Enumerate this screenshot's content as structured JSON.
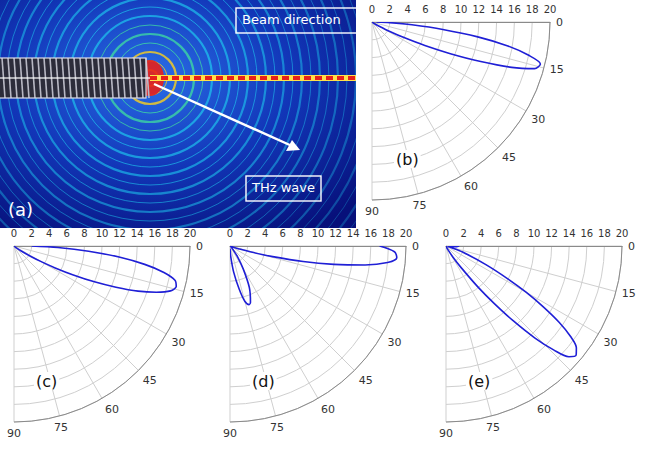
{
  "panel_a": {
    "title": "(a)",
    "annotations": [
      "Beam direction",
      "THz wave"
    ]
  },
  "chart_data": [
    {
      "type": "polar",
      "title": "(b)",
      "color": "#1f1fd6",
      "grid": true,
      "thetalim": [
        0,
        90
      ],
      "thetaticks": [
        0,
        15,
        30,
        45,
        60,
        75,
        90
      ],
      "rlim": [
        0,
        20
      ],
      "rticks": [
        0,
        2,
        4,
        6,
        8,
        10,
        12,
        14,
        16,
        18,
        20
      ],
      "theta": [
        0,
        2,
        4,
        6,
        8,
        10,
        12,
        14,
        16,
        18,
        20,
        22,
        24,
        26,
        28,
        30,
        34,
        40,
        90
      ],
      "r": [
        0.5,
        2,
        4.5,
        8,
        12,
        15.5,
        18,
        19.5,
        19,
        16.5,
        13,
        9.5,
        6.5,
        4,
        2.2,
        1,
        0.3,
        0,
        0
      ]
    },
    {
      "type": "polar",
      "title": "(c)",
      "color": "#1f1fd6",
      "grid": true,
      "thetalim": [
        0,
        90
      ],
      "thetaticks": [
        0,
        15,
        30,
        45,
        60,
        75,
        90
      ],
      "rlim": [
        0,
        20
      ],
      "rticks": [
        0,
        2,
        4,
        6,
        8,
        10,
        12,
        14,
        16,
        18,
        20
      ],
      "theta": [
        0,
        2,
        4,
        6,
        8,
        10,
        12,
        14,
        16,
        18,
        20,
        22,
        24,
        26,
        28,
        30,
        32,
        35,
        40,
        45,
        90
      ],
      "r": [
        2,
        5,
        8.5,
        12,
        15,
        17.3,
        18.7,
        19,
        18.5,
        17,
        15,
        12.5,
        10,
        7.5,
        5.3,
        3.5,
        2.2,
        1,
        0.3,
        0,
        0
      ]
    },
    {
      "type": "polar",
      "title": "(d)",
      "color": "#1f1fd6",
      "grid": true,
      "thetalim": [
        0,
        90
      ],
      "thetaticks": [
        0,
        15,
        30,
        45,
        60,
        75,
        90
      ],
      "rlim": [
        0,
        20
      ],
      "rticks": [
        0,
        2,
        4,
        6,
        8,
        10,
        12,
        14,
        16,
        18,
        20
      ],
      "theta": [
        0,
        2,
        4,
        6,
        8,
        10,
        12,
        14,
        16,
        18,
        20,
        25,
        35,
        45,
        50,
        55,
        60,
        65,
        70,
        72,
        75,
        78,
        82,
        86,
        90
      ],
      "r": [
        17,
        18.7,
        19,
        18,
        15.5,
        12,
        8.5,
        5,
        2.5,
        1,
        0.4,
        0.1,
        0.05,
        0.1,
        0.5,
        1.5,
        3,
        5.2,
        6.8,
        7,
        6.5,
        5,
        3,
        1.2,
        0.3
      ]
    },
    {
      "type": "polar",
      "title": "(e)",
      "color": "#1f1fd6",
      "grid": true,
      "thetalim": [
        0,
        90
      ],
      "thetaticks": [
        0,
        15,
        30,
        45,
        60,
        75,
        90
      ],
      "rlim": [
        0,
        20
      ],
      "rticks": [
        0,
        2,
        4,
        6,
        8,
        10,
        12,
        14,
        16,
        18,
        20
      ],
      "theta": [
        0,
        4,
        8,
        12,
        16,
        20,
        25,
        28,
        30,
        32,
        34,
        36,
        38,
        40,
        42,
        44,
        46,
        48,
        50,
        52,
        55,
        58,
        62,
        70,
        90
      ],
      "r": [
        1.5,
        1.2,
        0.5,
        0.2,
        0.6,
        2,
        5,
        8,
        10.5,
        13,
        15.5,
        17.5,
        18.8,
        19.3,
        18.8,
        17,
        14.5,
        11.5,
        8.5,
        6,
        3,
        1.5,
        0.5,
        0.1,
        0
      ]
    }
  ]
}
